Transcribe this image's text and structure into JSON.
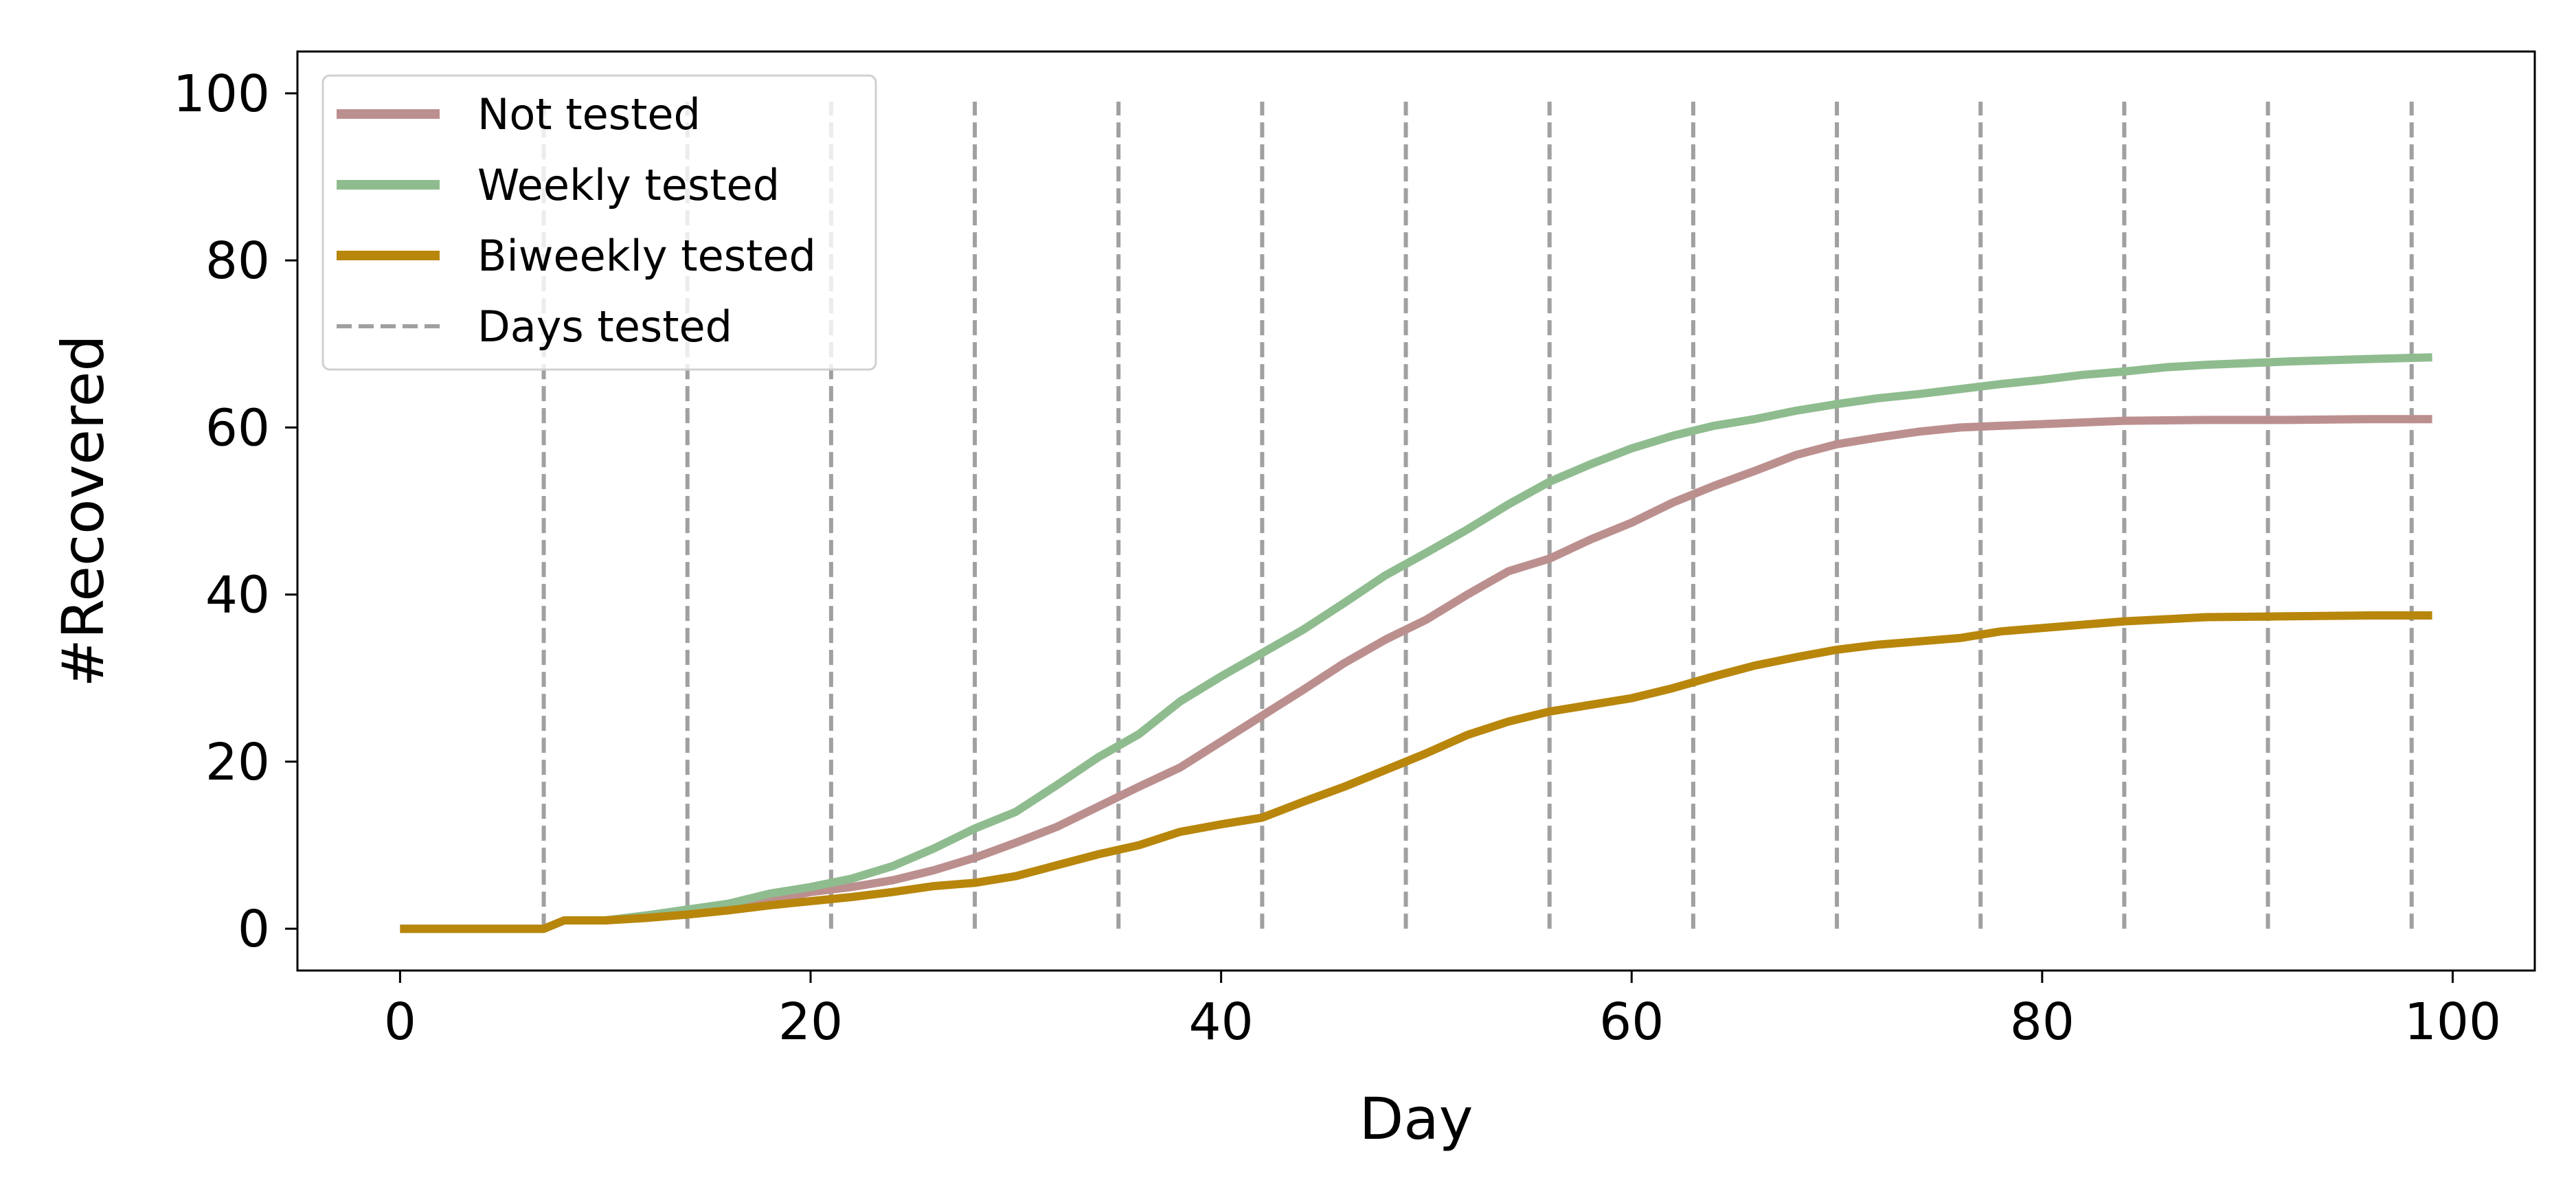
{
  "chart_data": {
    "type": "line",
    "title": "",
    "xlabel": "Day",
    "ylabel": "#Recovered",
    "xlim": [
      -5,
      104
    ],
    "ylim": [
      -5,
      105
    ],
    "xticks": [
      0,
      20,
      40,
      60,
      80,
      100
    ],
    "yticks": [
      0,
      20,
      40,
      60,
      80,
      100
    ],
    "grid": false,
    "legend_position": "top-left",
    "series": [
      {
        "name": "Not tested",
        "color": "#bc8f8f",
        "style": "solid",
        "points": [
          [
            0,
            0
          ],
          [
            7,
            0
          ],
          [
            8,
            1
          ],
          [
            10,
            1
          ],
          [
            12,
            1.3
          ],
          [
            14,
            2
          ],
          [
            16,
            2.6
          ],
          [
            18,
            3.4
          ],
          [
            20,
            4.4
          ],
          [
            22,
            5
          ],
          [
            24,
            5.8
          ],
          [
            26,
            7
          ],
          [
            28,
            8.5
          ],
          [
            30,
            10.3
          ],
          [
            32,
            12.2
          ],
          [
            34,
            14.6
          ],
          [
            36,
            17
          ],
          [
            38,
            19.3
          ],
          [
            40,
            22.4
          ],
          [
            42,
            25.5
          ],
          [
            44,
            28.6
          ],
          [
            46,
            31.8
          ],
          [
            48,
            34.6
          ],
          [
            50,
            37
          ],
          [
            52,
            40
          ],
          [
            54,
            42.8
          ],
          [
            56,
            44.3
          ],
          [
            58,
            46.6
          ],
          [
            60,
            48.6
          ],
          [
            62,
            51
          ],
          [
            64,
            53
          ],
          [
            66,
            54.8
          ],
          [
            68,
            56.7
          ],
          [
            70,
            58
          ],
          [
            72,
            58.8
          ],
          [
            74,
            59.5
          ],
          [
            76,
            60
          ],
          [
            78,
            60.2
          ],
          [
            80,
            60.4
          ],
          [
            84,
            60.8
          ],
          [
            88,
            60.9
          ],
          [
            92,
            60.9
          ],
          [
            96,
            61
          ],
          [
            99,
            61
          ]
        ]
      },
      {
        "name": "Weekly tested",
        "color": "#8fbc8f",
        "style": "solid",
        "points": [
          [
            0,
            0
          ],
          [
            7,
            0
          ],
          [
            8,
            1
          ],
          [
            10,
            1
          ],
          [
            12,
            1.6
          ],
          [
            14,
            2.3
          ],
          [
            16,
            3
          ],
          [
            18,
            4.2
          ],
          [
            20,
            5
          ],
          [
            22,
            6
          ],
          [
            24,
            7.5
          ],
          [
            26,
            9.6
          ],
          [
            28,
            12
          ],
          [
            30,
            14
          ],
          [
            32,
            17.2
          ],
          [
            34,
            20.5
          ],
          [
            36,
            23.3
          ],
          [
            38,
            27.2
          ],
          [
            40,
            30.2
          ],
          [
            42,
            33
          ],
          [
            44,
            35.8
          ],
          [
            46,
            39
          ],
          [
            48,
            42.3
          ],
          [
            50,
            45
          ],
          [
            52,
            47.8
          ],
          [
            54,
            50.8
          ],
          [
            56,
            53.5
          ],
          [
            58,
            55.6
          ],
          [
            60,
            57.5
          ],
          [
            62,
            59
          ],
          [
            64,
            60.2
          ],
          [
            66,
            61
          ],
          [
            68,
            62
          ],
          [
            70,
            62.8
          ],
          [
            72,
            63.5
          ],
          [
            74,
            64
          ],
          [
            76,
            64.6
          ],
          [
            78,
            65.2
          ],
          [
            80,
            65.7
          ],
          [
            82,
            66.3
          ],
          [
            84,
            66.7
          ],
          [
            86,
            67.2
          ],
          [
            88,
            67.5
          ],
          [
            92,
            67.9
          ],
          [
            96,
            68.2
          ],
          [
            99,
            68.4
          ]
        ]
      },
      {
        "name": "Biweekly tested",
        "color": "#b8860b",
        "style": "solid",
        "points": [
          [
            0,
            0
          ],
          [
            7,
            0
          ],
          [
            8,
            1
          ],
          [
            10,
            1
          ],
          [
            12,
            1.3
          ],
          [
            14,
            1.7
          ],
          [
            16,
            2.2
          ],
          [
            18,
            2.8
          ],
          [
            20,
            3.3
          ],
          [
            22,
            3.8
          ],
          [
            24,
            4.4
          ],
          [
            26,
            5.1
          ],
          [
            28,
            5.5
          ],
          [
            30,
            6.3
          ],
          [
            32,
            7.6
          ],
          [
            34,
            8.9
          ],
          [
            36,
            10
          ],
          [
            38,
            11.6
          ],
          [
            40,
            12.5
          ],
          [
            42,
            13.3
          ],
          [
            44,
            15.2
          ],
          [
            46,
            17
          ],
          [
            48,
            19
          ],
          [
            50,
            21
          ],
          [
            52,
            23.2
          ],
          [
            54,
            24.8
          ],
          [
            56,
            26
          ],
          [
            58,
            26.8
          ],
          [
            60,
            27.6
          ],
          [
            62,
            28.8
          ],
          [
            64,
            30.2
          ],
          [
            66,
            31.5
          ],
          [
            68,
            32.5
          ],
          [
            70,
            33.4
          ],
          [
            72,
            34
          ],
          [
            74,
            34.4
          ],
          [
            76,
            34.8
          ],
          [
            78,
            35.6
          ],
          [
            80,
            36
          ],
          [
            84,
            36.8
          ],
          [
            88,
            37.3
          ],
          [
            92,
            37.4
          ],
          [
            96,
            37.5
          ],
          [
            99,
            37.5
          ]
        ]
      },
      {
        "name": "Days tested",
        "color": "#a0a0a0",
        "style": "dashed",
        "vlines": [
          7,
          14,
          21,
          28,
          35,
          42,
          49,
          56,
          63,
          70,
          77,
          84,
          91,
          98
        ],
        "vline_range": [
          0,
          99
        ]
      }
    ]
  }
}
